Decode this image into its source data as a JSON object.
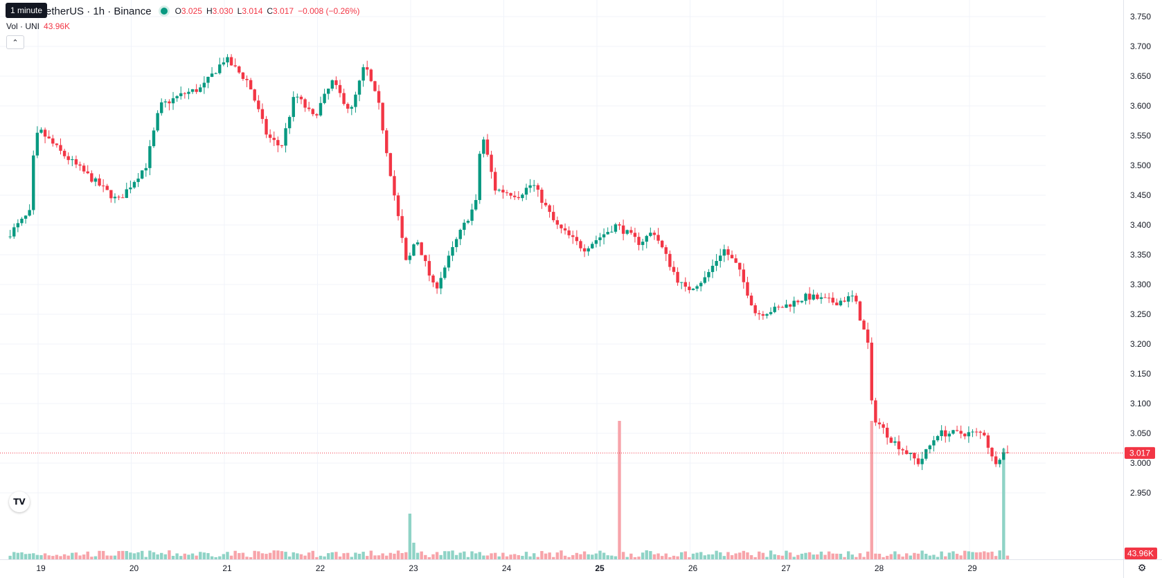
{
  "header": {
    "symbol": "UNI / TetherUS · 1h · Binance",
    "symbol_visible": "etherUS · 1h · Binance",
    "tooltip": "1 minute",
    "open_label": "O",
    "open": "3.025",
    "high_label": "H",
    "high": "3.030",
    "low_label": "L",
    "low": "3.014",
    "close_label": "C",
    "close": "3.017",
    "change": "−0.008 (−0.26%)",
    "volume_label": "Vol · UNI",
    "volume": "43.96K",
    "collapse_icon": "chevron-up-icon"
  },
  "price_axis": {
    "ticks": [
      "3.750",
      "3.700",
      "3.650",
      "3.600",
      "3.550",
      "3.500",
      "3.450",
      "3.400",
      "3.350",
      "3.300",
      "3.250",
      "3.200",
      "3.150",
      "3.100",
      "3.050",
      "3.000",
      "2.950"
    ],
    "last_price_label": "3.017",
    "last_volume_label": "43.96K"
  },
  "time_axis": {
    "ticks": [
      "19",
      "20",
      "21",
      "22",
      "23",
      "24",
      "25",
      "26",
      "27",
      "28",
      "29"
    ],
    "bold_tick": "25"
  },
  "colors": {
    "up": "#089981",
    "down": "#f23645",
    "vol_up": "#8fd3c6",
    "vol_down": "#f7a4aa"
  },
  "chart_data": {
    "type": "candlestick",
    "interval": "1h",
    "y_range": [
      2.92,
      3.76
    ],
    "grid": true,
    "anchors": [
      {
        "d": 18.7,
        "p": 3.38
      },
      {
        "d": 18.95,
        "p": 3.42
      },
      {
        "d": 19.0,
        "p": 3.53
      },
      {
        "d": 19.05,
        "p": 3.56
      },
      {
        "d": 19.3,
        "p": 3.52
      },
      {
        "d": 19.6,
        "p": 3.48
      },
      {
        "d": 19.9,
        "p": 3.44
      },
      {
        "d": 20.2,
        "p": 3.5
      },
      {
        "d": 20.35,
        "p": 3.6
      },
      {
        "d": 20.6,
        "p": 3.62
      },
      {
        "d": 20.8,
        "p": 3.63
      },
      {
        "d": 21.05,
        "p": 3.68
      },
      {
        "d": 21.3,
        "p": 3.64
      },
      {
        "d": 21.5,
        "p": 3.55
      },
      {
        "d": 21.65,
        "p": 3.53
      },
      {
        "d": 21.8,
        "p": 3.62
      },
      {
        "d": 22.0,
        "p": 3.58
      },
      {
        "d": 22.2,
        "p": 3.64
      },
      {
        "d": 22.4,
        "p": 3.59
      },
      {
        "d": 22.55,
        "p": 3.67
      },
      {
        "d": 22.7,
        "p": 3.6
      },
      {
        "d": 22.9,
        "p": 3.42
      },
      {
        "d": 23.0,
        "p": 3.33
      },
      {
        "d": 23.1,
        "p": 3.38
      },
      {
        "d": 23.3,
        "p": 3.29
      },
      {
        "d": 23.55,
        "p": 3.38
      },
      {
        "d": 23.75,
        "p": 3.44
      },
      {
        "d": 23.8,
        "p": 3.56
      },
      {
        "d": 23.95,
        "p": 3.46
      },
      {
        "d": 24.2,
        "p": 3.45
      },
      {
        "d": 24.35,
        "p": 3.47
      },
      {
        "d": 24.6,
        "p": 3.4
      },
      {
        "d": 24.9,
        "p": 3.36
      },
      {
        "d": 25.25,
        "p": 3.4
      },
      {
        "d": 25.5,
        "p": 3.37
      },
      {
        "d": 25.65,
        "p": 3.39
      },
      {
        "d": 25.9,
        "p": 3.31
      },
      {
        "d": 26.0,
        "p": 3.29
      },
      {
        "d": 26.2,
        "p": 3.31
      },
      {
        "d": 26.4,
        "p": 3.36
      },
      {
        "d": 26.55,
        "p": 3.33
      },
      {
        "d": 26.75,
        "p": 3.25
      },
      {
        "d": 27.0,
        "p": 3.26
      },
      {
        "d": 27.3,
        "p": 3.28
      },
      {
        "d": 27.6,
        "p": 3.27
      },
      {
        "d": 27.8,
        "p": 3.28
      },
      {
        "d": 27.95,
        "p": 3.2
      },
      {
        "d": 28.0,
        "p": 3.08
      },
      {
        "d": 28.2,
        "p": 3.04
      },
      {
        "d": 28.5,
        "p": 3.0
      },
      {
        "d": 28.7,
        "p": 3.05
      },
      {
        "d": 29.0,
        "p": 3.05
      },
      {
        "d": 29.2,
        "p": 3.05
      },
      {
        "d": 29.3,
        "p": 3.0
      },
      {
        "d": 29.4,
        "p": 3.017
      }
    ],
    "volume_spikes": [
      {
        "d": 23.0,
        "v": 0.33
      },
      {
        "d": 23.03,
        "v": 0.12
      },
      {
        "d": 25.25,
        "v": 1.0
      },
      {
        "d": 27.95,
        "v": 1.0
      },
      {
        "d": 29.35,
        "v": 0.8
      }
    ],
    "last_close": 3.017,
    "last_volume": "43.96K"
  }
}
